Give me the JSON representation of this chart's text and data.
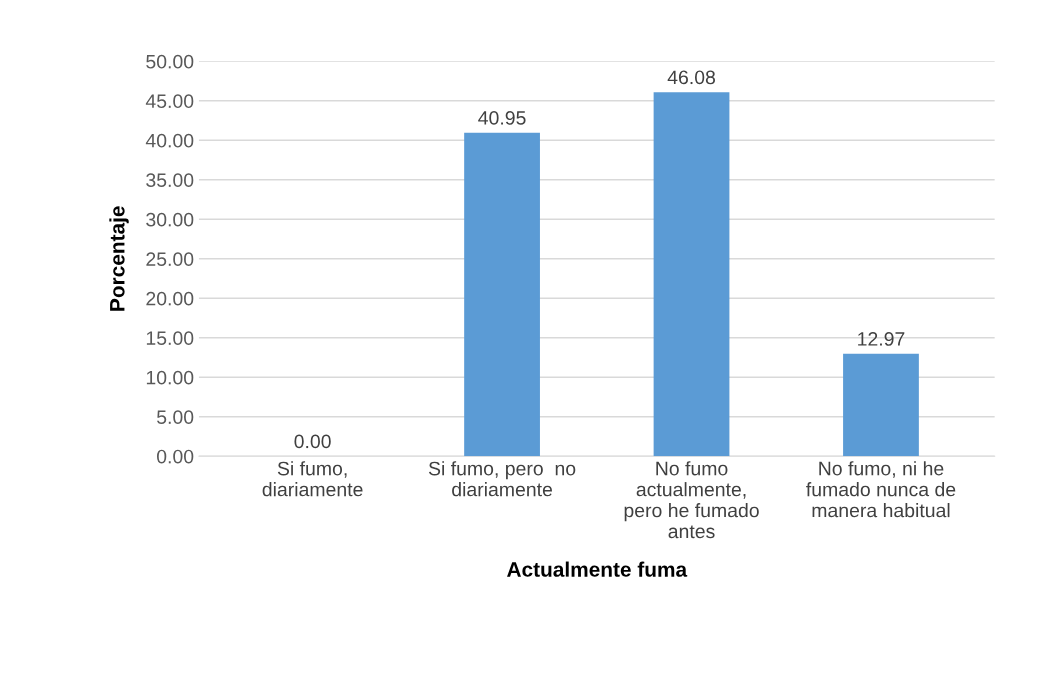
{
  "chart_data": {
    "type": "bar",
    "categories": [
      "Si fumo,\ndiariamente",
      "Si fumo, pero  no\ndiariamente",
      "No fumo\nactualmente,\npero he fumado\nantes",
      "No fumo, ni he\nfumado nunca de\nmanera habitual"
    ],
    "values": [
      0.0,
      40.95,
      46.08,
      12.97
    ],
    "value_labels": [
      "0.00",
      "40.95",
      "46.08",
      "12.97"
    ],
    "color": "#5b9bd5",
    "xlabel": "Actualmente fuma",
    "ylabel": "Porcentaje",
    "ylim": [
      0,
      50
    ],
    "yticks": [
      {
        "value": 0,
        "label": "0.00"
      },
      {
        "value": 5,
        "label": "5.00"
      },
      {
        "value": 10,
        "label": "10.00"
      },
      {
        "value": 15,
        "label": "15.00"
      },
      {
        "value": 20,
        "label": "20.00"
      },
      {
        "value": 25,
        "label": "25.00"
      },
      {
        "value": 30,
        "label": "30.00"
      },
      {
        "value": 35,
        "label": "35.00"
      },
      {
        "value": 40,
        "label": "40.00"
      },
      {
        "value": 45,
        "label": "45.00"
      },
      {
        "value": 50,
        "label": "50.00"
      }
    ],
    "grid": "y"
  }
}
